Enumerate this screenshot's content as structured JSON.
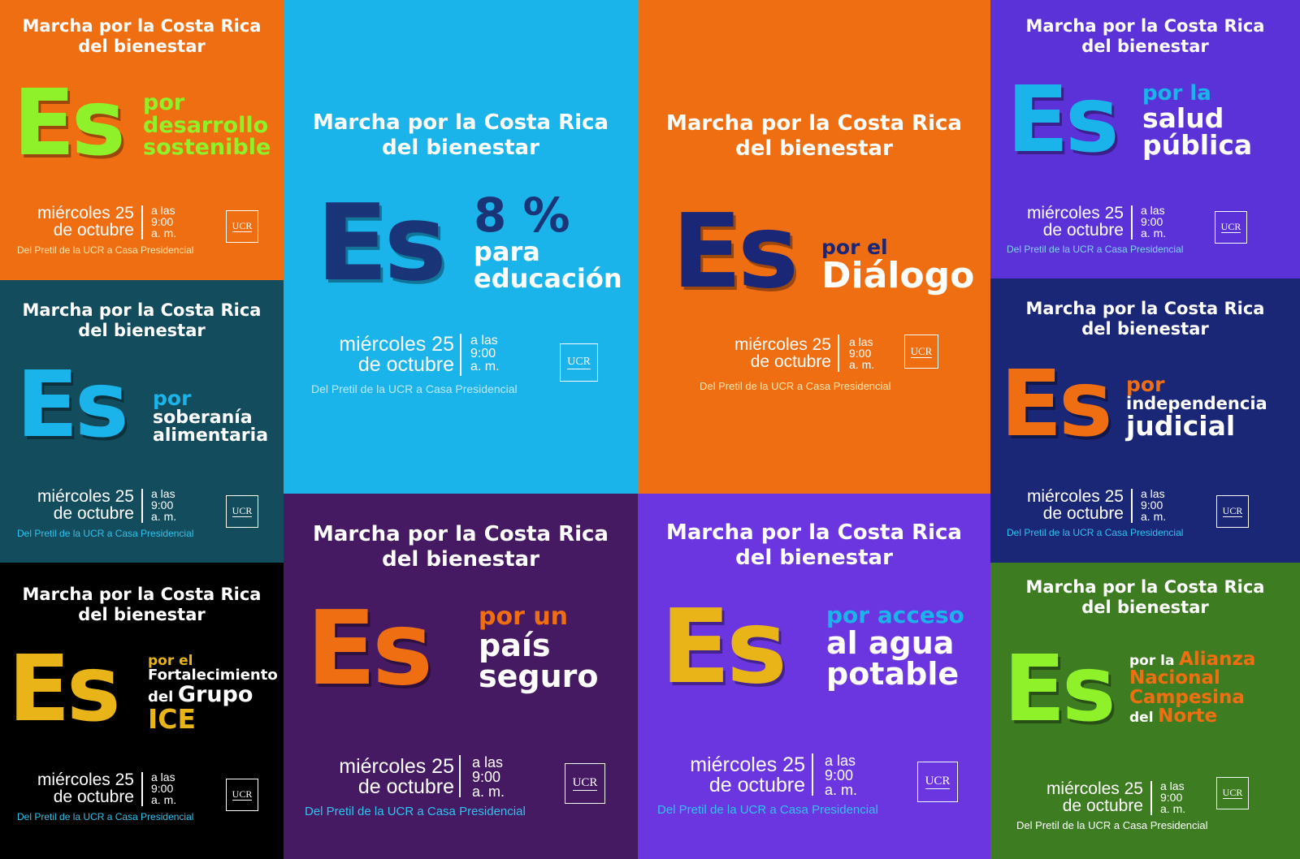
{
  "common": {
    "header_line1": "Marcha por la Costa Rica",
    "header_line2": "del bienestar",
    "es": "Es",
    "date_line1": "miércoles 25",
    "date_line2": "de octubre",
    "time_line1": "a las",
    "time_line2": "9:00",
    "time_line3": "a. m.",
    "logo": "UCR",
    "route": "Del Pretil de la UCR a Casa Presidencial"
  },
  "colors": {
    "orange": "#f06e12",
    "cyan": "#1ab4ea",
    "violet": "#5b32d8",
    "navy": "#1a2676",
    "teal": "#134c5c",
    "black": "#000000",
    "purple": "#451a62",
    "medium_violet": "#6b35e0",
    "green": "#3e7c22",
    "lime": "#8ef12a",
    "yellow": "#e8b418",
    "darkblue": "#1a3478"
  },
  "tiles": {
    "t1": {
      "tag": [
        "por",
        "desarrollo",
        "sostenible"
      ]
    },
    "t2": {
      "tag": [
        "8 %",
        "para",
        "educación"
      ]
    },
    "t3": {
      "tag": [
        "por el",
        "Diálogo"
      ]
    },
    "t4": {
      "tag": [
        "por la",
        "salud",
        "pública"
      ]
    },
    "t5": {
      "tag": [
        "por",
        "soberanía",
        "alimentaria"
      ]
    },
    "t6": {
      "tag": [
        "por",
        "independencia",
        "judicial"
      ]
    },
    "t7": {
      "tag": [
        "por el",
        "Fortalecimiento",
        "del",
        "Grupo",
        "ICE"
      ]
    },
    "t8": {
      "tag": [
        "por un",
        "país",
        "seguro"
      ]
    },
    "t9": {
      "tag": [
        "por acceso",
        "al agua",
        "potable"
      ]
    },
    "t10": {
      "tag": [
        "por la",
        "Alianza",
        "Nacional",
        "Campesina",
        "del",
        "Norte"
      ]
    }
  }
}
